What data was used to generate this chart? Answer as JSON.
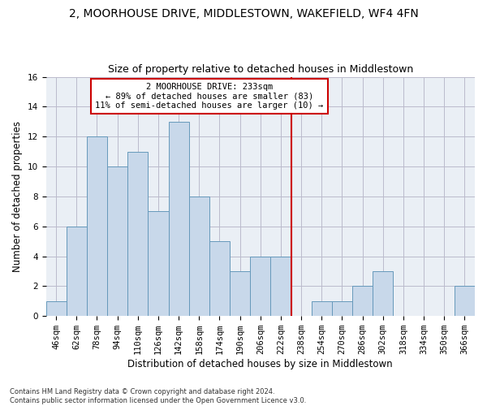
{
  "title_line1": "2, MOORHOUSE DRIVE, MIDDLESTOWN, WAKEFIELD, WF4 4FN",
  "title_line2": "Size of property relative to detached houses in Middlestown",
  "xlabel": "Distribution of detached houses by size in Middlestown",
  "ylabel": "Number of detached properties",
  "bar_labels": [
    "46sqm",
    "62sqm",
    "78sqm",
    "94sqm",
    "110sqm",
    "126sqm",
    "142sqm",
    "158sqm",
    "174sqm",
    "190sqm",
    "206sqm",
    "222sqm",
    "238sqm",
    "254sqm",
    "270sqm",
    "286sqm",
    "302sqm",
    "318sqm",
    "334sqm",
    "350sqm",
    "366sqm"
  ],
  "bar_values": [
    1,
    6,
    12,
    10,
    11,
    7,
    13,
    8,
    5,
    3,
    4,
    4,
    0,
    1,
    1,
    2,
    3,
    0,
    0,
    0,
    2
  ],
  "bar_color": "#c8d8ea",
  "bar_edgecolor": "#6699bb",
  "reference_line_x": 12.0,
  "annotation_text": "2 MOORHOUSE DRIVE: 233sqm\n← 89% of detached houses are smaller (83)\n11% of semi-detached houses are larger (10) →",
  "annotation_box_edgecolor": "#cc0000",
  "ylim": [
    0,
    16
  ],
  "yticks": [
    0,
    2,
    4,
    6,
    8,
    10,
    12,
    14,
    16
  ],
  "grid_color": "#bbbbcc",
  "background_color": "#eaeff5",
  "footnote": "Contains HM Land Registry data © Crown copyright and database right 2024.\nContains public sector information licensed under the Open Government Licence v3.0.",
  "title_fontsize": 10,
  "subtitle_fontsize": 9,
  "axis_label_fontsize": 8.5,
  "tick_fontsize": 7.5,
  "annotation_fontsize": 7.5,
  "footnote_fontsize": 6.0
}
